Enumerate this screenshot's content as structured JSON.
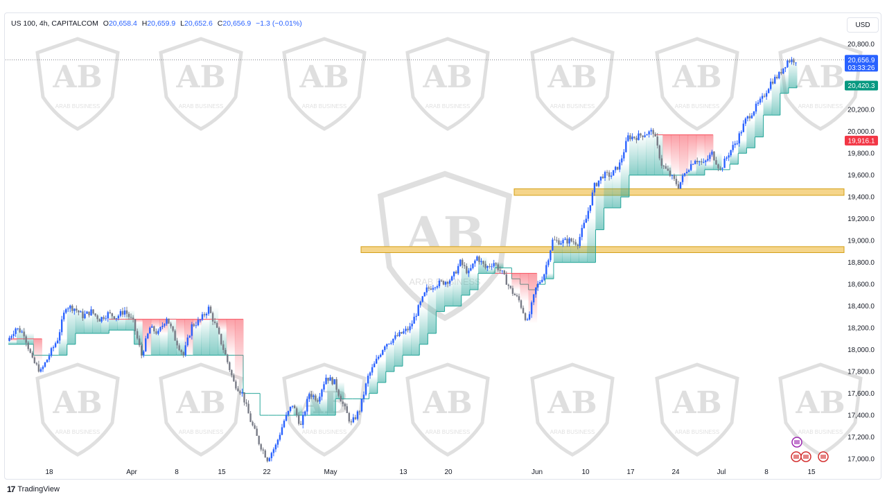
{
  "legend": {
    "symbol": "US 100, 4h, CAPITALCOM",
    "o_label": "O",
    "o_value": "20,658.4",
    "h_label": "H",
    "h_value": "20,659.9",
    "l_label": "L",
    "l_value": "20,652.6",
    "c_label": "C",
    "c_value": "20,656.9",
    "change": "−1.3 (−0.01%)"
  },
  "currency": "USD",
  "footer": {
    "brand": "TradingView",
    "logo_glyph": "17"
  },
  "watermark": {
    "text": "ARAB BUSINESS",
    "letters": "AB"
  },
  "price_tags": {
    "last": {
      "price": 20656.9,
      "label": "20,656.9",
      "countdown": "03:33:26",
      "color": "#2962ff"
    },
    "support_line": {
      "price": 20420.3,
      "label": "20,420.3",
      "color": "#089981"
    },
    "resistance_line": {
      "price": 19916.1,
      "label": "19,916.1",
      "color": "#f23645"
    }
  },
  "colors": {
    "up": "#2962ff",
    "down": "#787b86",
    "cloud_green": "#26a69a",
    "cloud_red": "#f7525f",
    "zone_fill": "#f5d58a",
    "zone_stroke": "#d4a017"
  },
  "chart_data": {
    "type": "candlestick",
    "y_axis": {
      "min": 16950,
      "max": 20900,
      "ticks": [
        17000,
        17200,
        17400,
        17600,
        17800,
        18000,
        18200,
        18400,
        18600,
        18800,
        19000,
        19200,
        19400,
        19600,
        19800,
        20000,
        20200,
        20800
      ],
      "tick_labels": [
        "17,000.0",
        "17,200.0",
        "17,400.0",
        "17,600.0",
        "17,800.0",
        "18,000.0",
        "18,200.0",
        "18,400.0",
        "18,600.0",
        "18,800.0",
        "19,000.0",
        "19,200.0",
        "19,400.0",
        "19,600.0",
        "19,800.0",
        "20,000.0",
        "20,200.0",
        "20,800.0"
      ]
    },
    "x_axis": {
      "labels": [
        "18",
        "Apr",
        "8",
        "15",
        "22",
        "May",
        "13",
        "20",
        "Jun",
        "10",
        "17",
        "24",
        "Jul",
        "8",
        "15"
      ]
    },
    "zones": [
      {
        "name": "upper-zone",
        "from": 19415,
        "to": 19475
      },
      {
        "name": "lower-zone",
        "from": 18890,
        "to": 18945
      }
    ],
    "price_path": [
      18080,
      18200,
      18150,
      17900,
      17800,
      17950,
      18100,
      18400,
      18380,
      18310,
      18350,
      18280,
      18330,
      18300,
      18360,
      18250,
      17950,
      18200,
      18150,
      18300,
      18100,
      17950,
      18220,
      18270,
      18380,
      18180,
      17950,
      17700,
      17600,
      17350,
      17150,
      17000,
      17120,
      17350,
      17500,
      17300,
      17600,
      17550,
      17750,
      17700,
      17500,
      17320,
      17450,
      17750,
      17900,
      18050,
      18100,
      18150,
      18200,
      18380,
      18550,
      18600,
      18620,
      18650,
      18800,
      18700,
      18850,
      18750,
      18800,
      18700,
      18550,
      18450,
      18250,
      18560,
      18700,
      19000,
      18990,
      19000,
      18980,
      19200,
      19500,
      19600,
      19600,
      19700,
      19950,
      19950,
      19980,
      20000,
      19700,
      19600,
      19500,
      19650,
      19750,
      19700,
      19800,
      19650,
      19800,
      19920,
      20100,
      20200,
      20300,
      20450,
      20520,
      20650,
      20657
    ],
    "support_line_path": [
      18050,
      18050,
      18050,
      17950,
      17950,
      17950,
      17950,
      18050,
      18150,
      18150,
      18150,
      18150,
      18180,
      18180,
      18180,
      18050,
      17950,
      17950,
      17950,
      17950,
      17950,
      17950,
      17950,
      17950,
      17950,
      17950,
      17950,
      17950,
      17600,
      17600,
      17400,
      17400,
      17400,
      17400,
      17400,
      17400,
      17400,
      17400,
      17400,
      17550,
      17550,
      17550,
      17550,
      17600,
      17700,
      17800,
      17850,
      17950,
      17950,
      18050,
      18150,
      18350,
      18400,
      18400,
      18500,
      18550,
      18700,
      18700,
      18750,
      18750,
      18650,
      18600,
      18550,
      18600,
      18650,
      18800,
      18800,
      18800,
      18800,
      18800,
      19100,
      19300,
      19300,
      19400,
      19600,
      19600,
      19600,
      19600,
      19600,
      19600,
      19600,
      19600,
      19600,
      19650,
      19650,
      19650,
      19700,
      19800,
      19850,
      19950,
      20150,
      20150,
      20350,
      20400,
      20420
    ],
    "resistance_segments": [
      {
        "from_index": 0,
        "to_index": 4,
        "level": 18100
      },
      {
        "from_index": 12,
        "to_index": 28,
        "level": 18280
      },
      {
        "from_index": 58,
        "to_index": 63,
        "level": 18700
      },
      {
        "from_index": 77,
        "to_index": 84,
        "level": 19970
      }
    ]
  }
}
